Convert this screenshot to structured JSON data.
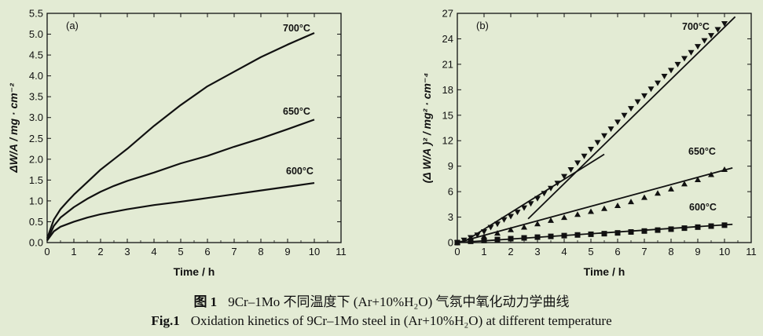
{
  "chart_data": [
    {
      "type": "line",
      "panel_label": "(a)",
      "xlabel": "Time / h",
      "ylabel": "ΔW/A / mg · cm⁻²",
      "xlim": [
        0,
        11
      ],
      "ylim": [
        0,
        5.5
      ],
      "xticks": [
        0,
        1,
        2,
        3,
        4,
        5,
        6,
        7,
        8,
        9,
        10,
        11
      ],
      "yticks": [
        0.0,
        0.5,
        1.0,
        1.5,
        2.0,
        2.5,
        3.0,
        3.5,
        4.0,
        4.5,
        5.0,
        5.5
      ],
      "ytick_labels": [
        "0.0",
        "0.5",
        "1.0",
        "1.5",
        "2.0",
        "2.5",
        "3.0",
        "3.5",
        "4.0",
        "4.5",
        "5.0",
        "5.5"
      ],
      "grid": false,
      "series": [
        {
          "name": "700°C",
          "x": [
            0,
            0.25,
            0.5,
            0.75,
            1,
            1.5,
            2,
            2.5,
            3,
            4,
            5,
            6,
            7,
            8,
            9,
            10
          ],
          "y": [
            0.1,
            0.55,
            0.8,
            0.98,
            1.15,
            1.45,
            1.75,
            2.0,
            2.25,
            2.8,
            3.3,
            3.75,
            4.1,
            4.45,
            4.75,
            5.03
          ]
        },
        {
          "name": "650°C",
          "x": [
            0,
            0.25,
            0.5,
            1,
            1.5,
            2,
            2.5,
            3,
            4,
            5,
            6,
            7,
            8,
            9,
            10
          ],
          "y": [
            0.05,
            0.4,
            0.6,
            0.85,
            1.05,
            1.22,
            1.36,
            1.48,
            1.68,
            1.9,
            2.08,
            2.3,
            2.5,
            2.72,
            2.95
          ]
        },
        {
          "name": "600°C",
          "x": [
            0,
            0.25,
            0.5,
            1,
            1.5,
            2,
            3,
            4,
            5,
            6,
            7,
            8,
            9,
            10
          ],
          "y": [
            0.05,
            0.27,
            0.38,
            0.5,
            0.6,
            0.68,
            0.8,
            0.9,
            0.98,
            1.07,
            1.16,
            1.25,
            1.34,
            1.43
          ]
        }
      ]
    },
    {
      "type": "scatter",
      "panel_label": "(b)",
      "xlabel": "Time / h",
      "ylabel": "(Δ W/A )² / mg² · cm⁻⁴",
      "xlim": [
        0,
        11
      ],
      "ylim": [
        0,
        27
      ],
      "xticks": [
        0,
        1,
        2,
        3,
        4,
        5,
        6,
        7,
        8,
        9,
        10,
        11
      ],
      "yticks": [
        0,
        3,
        6,
        9,
        12,
        15,
        18,
        21,
        24,
        27
      ],
      "grid": false,
      "series": [
        {
          "name": "700°C",
          "marker": "triangle-down",
          "x": [
            0,
            0.25,
            0.5,
            0.75,
            1,
            1.25,
            1.5,
            1.75,
            2,
            2.25,
            2.5,
            2.75,
            3,
            3.25,
            3.5,
            3.75,
            4,
            4.25,
            4.5,
            4.75,
            5,
            5.25,
            5.5,
            5.75,
            6,
            6.25,
            6.5,
            6.75,
            7,
            7.25,
            7.5,
            7.75,
            8,
            8.25,
            8.5,
            8.75,
            9,
            9.25,
            9.5,
            9.75,
            10
          ],
          "y": [
            0.0,
            0.3,
            0.6,
            0.9,
            1.3,
            1.8,
            2.2,
            2.7,
            3.1,
            3.6,
            4.1,
            4.6,
            5.2,
            5.8,
            6.4,
            7.0,
            7.8,
            8.6,
            9.4,
            10.2,
            11.0,
            11.8,
            12.6,
            13.4,
            14.2,
            15.0,
            15.8,
            16.6,
            17.3,
            18.1,
            18.8,
            19.6,
            20.3,
            21.0,
            21.7,
            22.4,
            23.1,
            23.8,
            24.4,
            25.1,
            25.8
          ]
        },
        {
          "name": "650°C",
          "marker": "triangle-up",
          "x": [
            0,
            0.5,
            1,
            1.5,
            2,
            2.5,
            3,
            3.5,
            4,
            4.5,
            5,
            5.5,
            6,
            6.5,
            7,
            7.5,
            8,
            8.5,
            9,
            9.5,
            10
          ],
          "y": [
            0.0,
            0.35,
            0.7,
            1.1,
            1.5,
            1.8,
            2.2,
            2.6,
            2.95,
            3.3,
            3.65,
            4.0,
            4.35,
            4.8,
            5.3,
            5.8,
            6.3,
            6.9,
            7.4,
            8.0,
            8.6
          ]
        },
        {
          "name": "600°C",
          "marker": "square",
          "x": [
            0,
            0.5,
            1,
            1.5,
            2,
            2.5,
            3,
            3.5,
            4,
            4.5,
            5,
            5.5,
            6,
            6.5,
            7,
            7.5,
            8,
            8.5,
            9,
            9.5,
            10
          ],
          "y": [
            0.0,
            0.15,
            0.25,
            0.36,
            0.46,
            0.55,
            0.64,
            0.73,
            0.82,
            0.9,
            0.98,
            1.05,
            1.14,
            1.25,
            1.36,
            1.47,
            1.58,
            1.7,
            1.82,
            1.94,
            2.05
          ]
        }
      ],
      "fit_lines": [
        {
          "series": "700°C",
          "x": [
            0.3,
            5.5
          ],
          "y": [
            0.2,
            10.4
          ]
        },
        {
          "series": "700°C",
          "x": [
            2.65,
            10.4
          ],
          "y": [
            2.8,
            26.6
          ]
        },
        {
          "series": "650°C",
          "x": [
            0,
            10.3
          ],
          "y": [
            0.0,
            8.8
          ]
        },
        {
          "series": "600°C",
          "x": [
            0,
            10.3
          ],
          "y": [
            0.0,
            2.15
          ]
        }
      ]
    }
  ],
  "captions": {
    "chinese": {
      "label": "图 1",
      "text": "9Cr–1Mo 不同温度下 (Ar+10%H₂O) 气氛中氧化动力学曲线"
    },
    "english": {
      "label": "Fig.1",
      "text": "Oxidation kinetics of 9Cr–1Mo steel in (Ar+10%H₂O) at different temperature"
    }
  },
  "colors": {
    "background": "#e3ebd4",
    "ink": "#111111"
  }
}
